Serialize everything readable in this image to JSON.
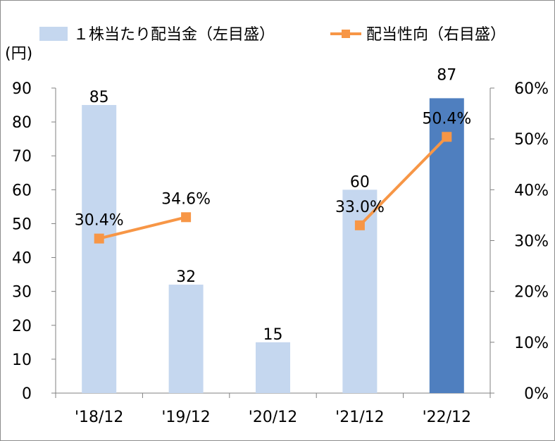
{
  "chart_data": {
    "type": "bar",
    "categories": [
      "'18/12",
      "'19/12",
      "'20/12",
      "'21/12",
      "'22/12"
    ],
    "series": [
      {
        "name": "１株当たり配当金（左目盛）",
        "type": "bar",
        "axis": "left",
        "values": [
          85,
          32,
          15,
          60,
          87
        ],
        "labels": [
          "85",
          "32",
          "15",
          "60",
          "87"
        ],
        "color": "#c5d7ef",
        "highlight_color": "#4f7fbf",
        "highlight_index": 4
      },
      {
        "name": "配当性向（右目盛）",
        "type": "line",
        "axis": "right",
        "values": [
          30.4,
          34.6,
          null,
          33.0,
          50.4
        ],
        "labels": [
          "30.4%",
          "34.6%",
          "",
          "33.0%",
          "50.4%"
        ],
        "color": "#f79646"
      }
    ],
    "y_left": {
      "unit_label": "(円)",
      "range": [
        0,
        90
      ],
      "ticks": [
        "0",
        "10",
        "20",
        "30",
        "40",
        "50",
        "60",
        "70",
        "80",
        "90"
      ]
    },
    "y_right": {
      "range": [
        0,
        60
      ],
      "ticks": [
        "0%",
        "10%",
        "20%",
        "30%",
        "40%",
        "50%",
        "60%"
      ]
    },
    "legend_position": "top",
    "grid": false
  }
}
